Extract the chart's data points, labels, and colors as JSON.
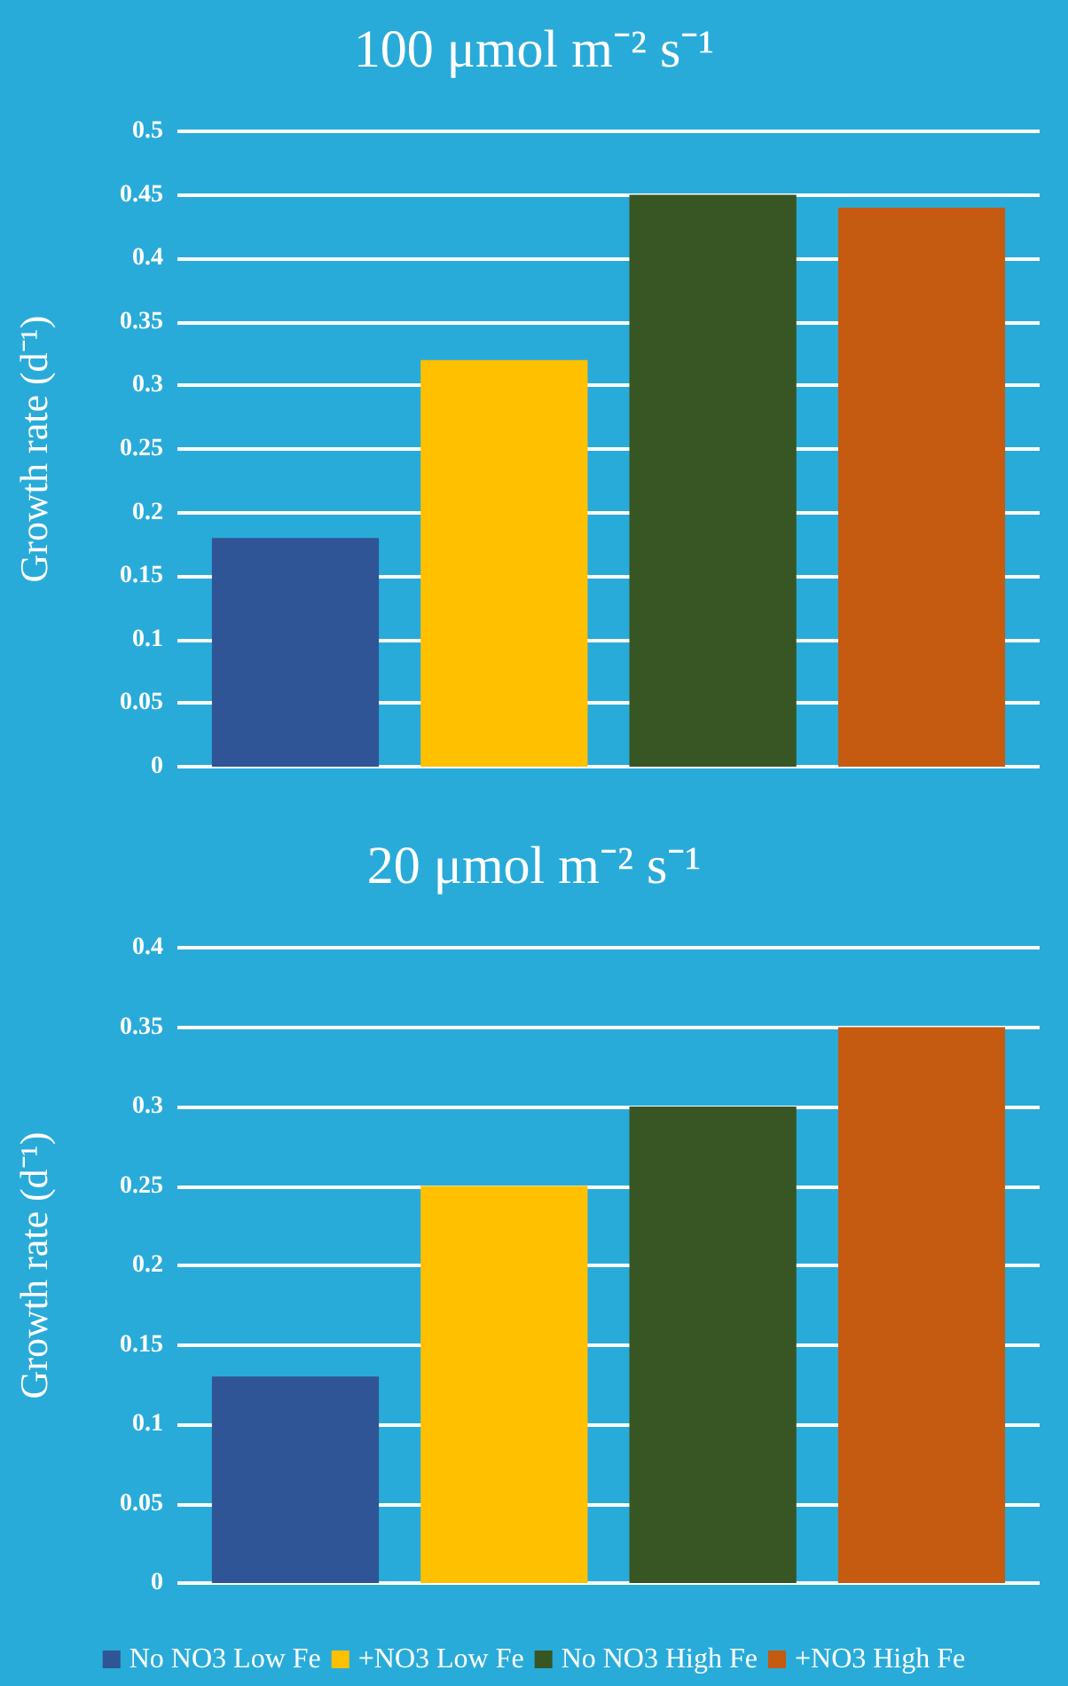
{
  "chart_data": [
    {
      "type": "bar",
      "title": "100 μmol m⁻² s⁻¹",
      "ylabel": "Growth rate (d⁻¹)",
      "categories": [
        null
      ],
      "series": [
        {
          "color": "#2f5597",
          "values": [
            0.18
          ]
        },
        {
          "color": "#ffc000",
          "values": [
            0.32
          ]
        },
        {
          "color": "#375623",
          "values": [
            0.45
          ]
        },
        {
          "color": "#c55a11",
          "values": [
            0.44
          ]
        }
      ],
      "ylim": [
        0,
        0.5
      ],
      "yticks": [
        0,
        0.05,
        0.1,
        0.15,
        0.2,
        0.25,
        0.3,
        0.35,
        0.4,
        0.45,
        0.5
      ],
      "grid": "y",
      "legend": false
    },
    {
      "type": "bar",
      "title": "20 μmol m⁻² s⁻¹",
      "ylabel": "Growth rate (d⁻¹)",
      "categories": [
        null
      ],
      "series": [
        {
          "name": "No NO3 Low Fe",
          "color": "#2f5597",
          "values": [
            0.13
          ]
        },
        {
          "name": "+NO3 Low Fe",
          "color": "#ffc000",
          "values": [
            0.25
          ]
        },
        {
          "name": "No NO3 High Fe",
          "color": "#375623",
          "values": [
            0.3
          ]
        },
        {
          "name": "+NO3 High Fe",
          "color": "#c55a11",
          "values": [
            0.35
          ]
        }
      ],
      "ylim": [
        0,
        0.4
      ],
      "yticks": [
        0,
        0.05,
        0.1,
        0.15,
        0.2,
        0.25,
        0.3,
        0.35,
        0.4
      ],
      "grid": "y",
      "legend": "bottom"
    }
  ]
}
